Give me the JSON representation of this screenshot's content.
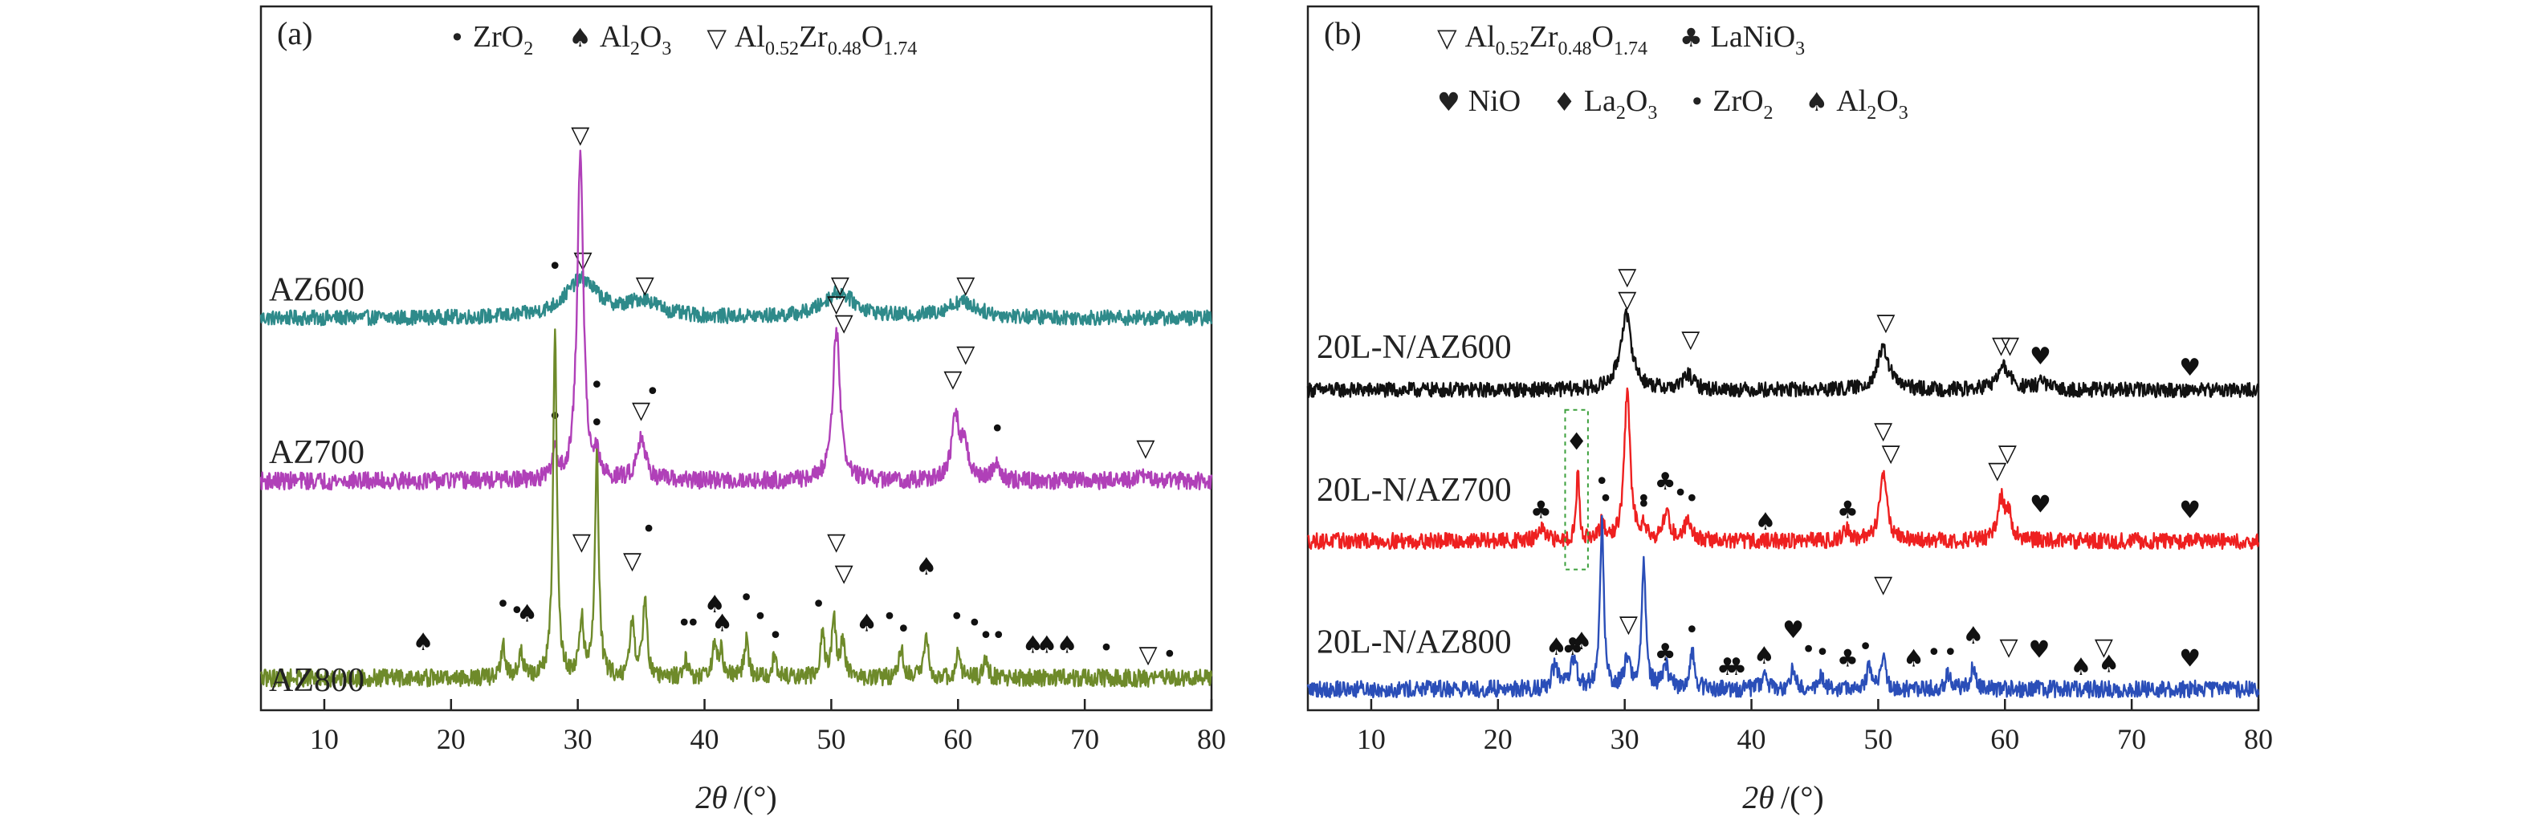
{
  "chart_data": [
    {
      "type": "line",
      "panel": "(a)",
      "xlabel_symbol": "2θ",
      "xlabel_unit": "/(°)",
      "xlim": [
        5,
        80
      ],
      "xticks": [
        10,
        20,
        30,
        40,
        50,
        60,
        70,
        80
      ],
      "legend": [
        {
          "symbol": "•",
          "formula": [
            [
              "ZrO",
              ""
            ],
            [
              "2",
              "sub"
            ]
          ]
        },
        {
          "symbol": "♠",
          "formula": [
            [
              "Al",
              ""
            ],
            [
              "2",
              "sub"
            ],
            [
              "O",
              ""
            ],
            [
              "3",
              "sub"
            ]
          ]
        },
        {
          "symbol": "▽",
          "formula": [
            [
              "Al",
              ""
            ],
            [
              "0.52",
              "sub"
            ],
            [
              "Zr",
              ""
            ],
            [
              "0.48",
              "sub"
            ],
            [
              "O",
              ""
            ],
            [
              "1.74",
              "sub"
            ]
          ]
        }
      ],
      "series": [
        {
          "name": "AZ600",
          "color": "#2e8a8a",
          "baseline": 0.62,
          "noise": 0.012,
          "peaks": [
            [
              30.3,
              0.06,
              1.6
            ],
            [
              35.2,
              0.025,
              1.5
            ],
            [
              50.6,
              0.04,
              1.5
            ],
            [
              60.3,
              0.025,
              1.5
            ]
          ],
          "markers": [
            [
              "▽",
              30.4,
              0.7
            ],
            [
              "▽",
              35.3,
              0.66
            ],
            [
              "▽",
              50.7,
              0.66
            ],
            [
              "▽",
              60.6,
              0.66
            ]
          ]
        },
        {
          "name": "AZ700",
          "color": "#b040b8",
          "baseline": 0.36,
          "noise": 0.014,
          "peaks": [
            [
              30.2,
              0.52,
              0.3
            ],
            [
              28.2,
              0.05,
              0.2
            ],
            [
              31.5,
              0.03,
              0.2
            ],
            [
              35.0,
              0.07,
              0.4
            ],
            [
              50.4,
              0.24,
              0.35
            ],
            [
              59.8,
              0.1,
              0.35
            ],
            [
              60.5,
              0.06,
              0.3
            ],
            [
              63.0,
              0.03,
              0.3
            ],
            [
              74.6,
              0.01,
              0.3
            ]
          ],
          "markers": [
            [
              "▽",
              30.2,
              0.9
            ],
            [
              "•",
              28.2,
              0.45
            ],
            [
              "•",
              31.5,
              0.44
            ],
            [
              "▽",
              35.0,
              0.46
            ],
            [
              "•",
              35.9,
              0.49
            ],
            [
              "▽",
              50.4,
              0.63
            ],
            [
              "▽",
              51.0,
              0.6
            ],
            [
              "▽",
              59.6,
              0.51
            ],
            [
              "▽",
              60.6,
              0.55
            ],
            [
              "•",
              63.1,
              0.43
            ],
            [
              "▽",
              74.8,
              0.4
            ]
          ]
        },
        {
          "name": "AZ800",
          "color": "#6e8a2a",
          "baseline": 0.045,
          "noise": 0.014,
          "peaks": [
            [
              28.2,
              0.55,
              0.18
            ],
            [
              31.5,
              0.36,
              0.18
            ],
            [
              24.1,
              0.05,
              0.2
            ],
            [
              25.5,
              0.04,
              0.2
            ],
            [
              30.3,
              0.09,
              0.2
            ],
            [
              34.3,
              0.09,
              0.2
            ],
            [
              35.3,
              0.13,
              0.2
            ],
            [
              38.5,
              0.03,
              0.2
            ],
            [
              40.8,
              0.05,
              0.2
            ],
            [
              41.3,
              0.04,
              0.2
            ],
            [
              43.3,
              0.06,
              0.2
            ],
            [
              45.5,
              0.03,
              0.2
            ],
            [
              49.3,
              0.07,
              0.2
            ],
            [
              50.2,
              0.09,
              0.2
            ],
            [
              50.9,
              0.06,
              0.2
            ],
            [
              55.5,
              0.05,
              0.2
            ],
            [
              57.5,
              0.07,
              0.2
            ],
            [
              60.0,
              0.04,
              0.2
            ],
            [
              62.2,
              0.03,
              0.2
            ]
          ],
          "markers": [
            [
              "♠",
              17.8,
              0.09
            ],
            [
              "•",
              24.1,
              0.15
            ],
            [
              "•",
              25.2,
              0.14
            ],
            [
              "♠",
              26.0,
              0.135
            ],
            [
              "•",
              28.2,
              0.69
            ],
            [
              "•",
              31.5,
              0.5
            ],
            [
              "▽",
              30.3,
              0.25
            ],
            [
              "▽",
              34.3,
              0.22
            ],
            [
              "•",
              35.6,
              0.27
            ],
            [
              "•",
              38.4,
              0.12
            ],
            [
              "•",
              39.1,
              0.12
            ],
            [
              "♠",
              40.8,
              0.15
            ],
            [
              "♠",
              41.4,
              0.12
            ],
            [
              "•",
              43.3,
              0.16
            ],
            [
              "•",
              44.4,
              0.13
            ],
            [
              "•",
              45.6,
              0.1
            ],
            [
              "•",
              49.0,
              0.15
            ],
            [
              "▽",
              50.4,
              0.25
            ],
            [
              "▽",
              51.0,
              0.2
            ],
            [
              "♠",
              52.8,
              0.12
            ],
            [
              "•",
              54.6,
              0.13
            ],
            [
              "•",
              55.7,
              0.11
            ],
            [
              "♠",
              57.5,
              0.21
            ],
            [
              "•",
              59.9,
              0.13
            ],
            [
              "•",
              61.3,
              0.12
            ],
            [
              "•",
              62.2,
              0.1
            ],
            [
              "•",
              63.2,
              0.1
            ],
            [
              "♠",
              65.9,
              0.085
            ],
            [
              "♠",
              67.0,
              0.085
            ],
            [
              "♠",
              68.6,
              0.085
            ],
            [
              "•",
              71.7,
              0.08
            ],
            [
              "▽",
              75.0,
              0.07
            ],
            [
              "•",
              76.7,
              0.07
            ]
          ]
        }
      ]
    },
    {
      "type": "line",
      "panel": "(b)",
      "xlabel_symbol": "2θ",
      "xlabel_unit": "/(°)",
      "xlim": [
        5,
        80
      ],
      "xticks": [
        10,
        20,
        30,
        40,
        50,
        60,
        70,
        80
      ],
      "legend": [
        {
          "symbol": "▽",
          "formula": [
            [
              "Al",
              ""
            ],
            [
              "0.52",
              "sub"
            ],
            [
              "Zr",
              ""
            ],
            [
              "0.48",
              "sub"
            ],
            [
              "O",
              ""
            ],
            [
              "1.74",
              "sub"
            ]
          ]
        },
        {
          "symbol": "♣",
          "formula": [
            [
              "LaNiO",
              ""
            ],
            [
              "3",
              "sub"
            ]
          ]
        },
        {
          "symbol": "♥",
          "formula": [
            [
              "NiO",
              ""
            ]
          ]
        },
        {
          "symbol": "♦",
          "formula": [
            [
              "La",
              ""
            ],
            [
              "2",
              "sub"
            ],
            [
              "O",
              ""
            ],
            [
              "3",
              "sub"
            ]
          ]
        },
        {
          "symbol": "•",
          "formula": [
            [
              "ZrO",
              ""
            ],
            [
              "2",
              "sub"
            ]
          ]
        },
        {
          "symbol": "♠",
          "formula": [
            [
              "Al",
              ""
            ],
            [
              "2",
              "sub"
            ],
            [
              "O",
              ""
            ],
            [
              "3",
              "sub"
            ]
          ]
        }
      ],
      "series": [
        {
          "name": "20L-N/AZ600",
          "color": "#111111",
          "baseline": 0.555,
          "noise": 0.013,
          "peaks": [
            [
              30.1,
              0.13,
              0.55
            ],
            [
              35.0,
              0.025,
              0.5
            ],
            [
              50.4,
              0.07,
              0.6
            ],
            [
              59.9,
              0.04,
              0.6
            ],
            [
              62.9,
              0.015,
              0.4
            ]
          ],
          "markers": [
            [
              "▽",
              30.2,
              0.74
            ],
            [
              "▽",
              35.2,
              0.63
            ],
            [
              "▽",
              50.6,
              0.66
            ],
            [
              "▽",
              59.7,
              0.62
            ],
            [
              "▽",
              60.4,
              0.62
            ],
            [
              "♥",
              62.8,
              0.6
            ],
            [
              "♥",
              74.6,
              0.58
            ]
          ]
        },
        {
          "name": "20L-N/AZ700",
          "color": "#ee2020",
          "baseline": 0.29,
          "noise": 0.014,
          "peaks": [
            [
              30.2,
              0.26,
              0.28
            ],
            [
              26.3,
              0.12,
              0.15
            ],
            [
              28.2,
              0.03,
              0.2
            ],
            [
              31.5,
              0.03,
              0.2
            ],
            [
              33.3,
              0.05,
              0.3
            ],
            [
              35.0,
              0.04,
              0.3
            ],
            [
              47.5,
              0.02,
              0.3
            ],
            [
              50.4,
              0.12,
              0.35
            ],
            [
              59.7,
              0.07,
              0.35
            ],
            [
              60.3,
              0.04,
              0.3
            ],
            [
              23.4,
              0.02,
              0.3
            ]
          ],
          "markers": [
            [
              "▽",
              30.2,
              0.7
            ],
            [
              "♦",
              26.2,
              0.45
            ],
            [
              "♣",
              23.4,
              0.33
            ],
            [
              "•",
              28.5,
              0.35
            ],
            [
              "•",
              31.5,
              0.34
            ],
            [
              "♣",
              33.2,
              0.38
            ],
            [
              "•",
              34.4,
              0.36
            ],
            [
              "•",
              35.3,
              0.35
            ],
            [
              "♠",
              41.1,
              0.31
            ],
            [
              "♣",
              47.6,
              0.33
            ],
            [
              "▽",
              50.4,
              0.47
            ],
            [
              "▽",
              51.0,
              0.43
            ],
            [
              "▽",
              59.4,
              0.4
            ],
            [
              "▽",
              60.2,
              0.43
            ],
            [
              "♥",
              62.8,
              0.34
            ],
            [
              "♥",
              74.6,
              0.33
            ]
          ]
        },
        {
          "name": "20L-N/AZ800",
          "color": "#2a4eb8",
          "baseline": 0.03,
          "noise": 0.015,
          "peaks": [
            [
              28.2,
              0.29,
              0.18
            ],
            [
              31.5,
              0.23,
              0.18
            ],
            [
              24.5,
              0.04,
              0.3
            ],
            [
              26.0,
              0.05,
              0.3
            ],
            [
              30.2,
              0.05,
              0.3
            ],
            [
              33.2,
              0.04,
              0.3
            ],
            [
              35.3,
              0.07,
              0.2
            ],
            [
              41.0,
              0.03,
              0.2
            ],
            [
              43.3,
              0.04,
              0.2
            ],
            [
              45.5,
              0.02,
              0.2
            ],
            [
              49.3,
              0.04,
              0.2
            ],
            [
              50.4,
              0.06,
              0.2
            ],
            [
              55.5,
              0.03,
              0.2
            ],
            [
              57.5,
              0.04,
              0.2
            ]
          ],
          "markers": [
            [
              "•",
              28.2,
              0.38
            ],
            [
              "•",
              31.5,
              0.35
            ],
            [
              "♠",
              24.6,
              0.09
            ],
            [
              "♣",
              25.9,
              0.09
            ],
            [
              "♠",
              26.6,
              0.1
            ],
            [
              "▽",
              30.3,
              0.13
            ],
            [
              "♣",
              33.2,
              0.08
            ],
            [
              "•",
              35.3,
              0.12
            ],
            [
              "♣",
              38.1,
              0.055
            ],
            [
              "♣",
              38.8,
              0.055
            ],
            [
              "♠",
              41.0,
              0.075
            ],
            [
              "♥",
              43.3,
              0.12
            ],
            [
              "•",
              44.5,
              0.085
            ],
            [
              "•",
              45.6,
              0.08
            ],
            [
              "♣",
              47.6,
              0.07
            ],
            [
              "•",
              49.0,
              0.09
            ],
            [
              "▽",
              50.4,
              0.2
            ],
            [
              "♠",
              52.8,
              0.07
            ],
            [
              "•",
              54.4,
              0.08
            ],
            [
              "•",
              55.7,
              0.08
            ],
            [
              "♠",
              57.5,
              0.11
            ],
            [
              "▽",
              60.3,
              0.09
            ],
            [
              "♥",
              62.7,
              0.085
            ],
            [
              "♠",
              66.0,
              0.055
            ],
            [
              "▽",
              67.8,
              0.09
            ],
            [
              "♠",
              68.2,
              0.06
            ],
            [
              "♥",
              74.6,
              0.07
            ]
          ]
        }
      ]
    }
  ]
}
